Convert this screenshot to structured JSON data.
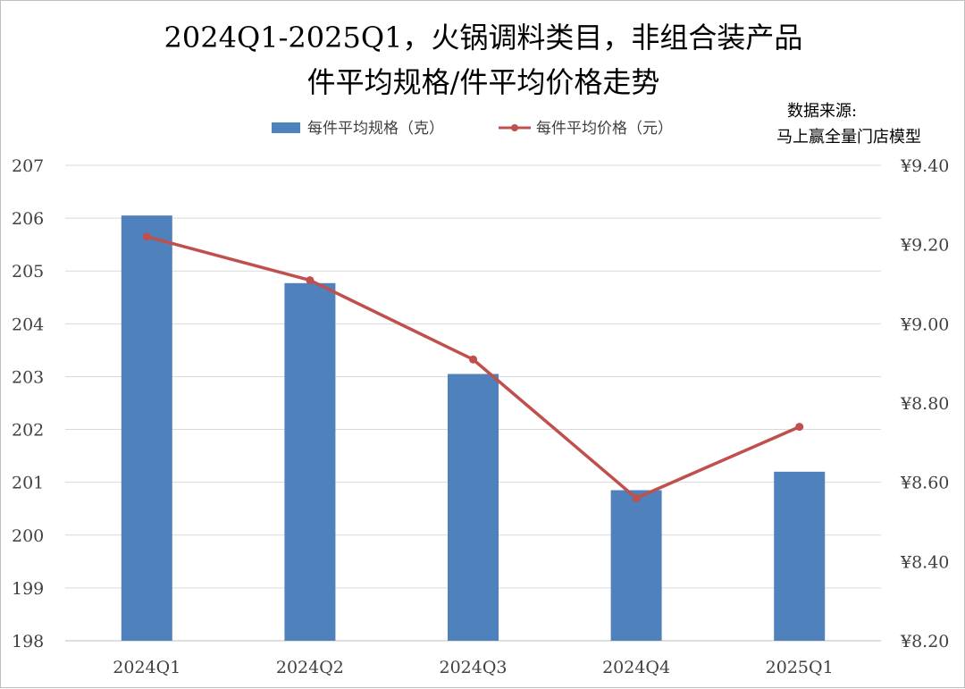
{
  "chart_data": {
    "type": "bar+line",
    "title_line1": "2024Q1-2025Q1，火锅调料类目，非组合装产品",
    "title_line2": "件平均规格/件平均价格走势",
    "source_label": "数据来源:",
    "source_name": "马上赢全量门店模型",
    "categories": [
      "2024Q1",
      "2024Q2",
      "2024Q3",
      "2024Q4",
      "2025Q1"
    ],
    "series": [
      {
        "name": "每件平均规格（克）",
        "type": "bar",
        "axis": "left",
        "color": "#4f81bd",
        "values": [
          206.05,
          204.77,
          203.05,
          200.85,
          201.2
        ]
      },
      {
        "name": "每件平均价格（元）",
        "type": "line",
        "axis": "right",
        "color": "#c0504d",
        "values": [
          9.22,
          9.11,
          8.91,
          8.56,
          8.74
        ]
      }
    ],
    "y_left": {
      "min": 198,
      "max": 207,
      "ticks": [
        "198",
        "199",
        "200",
        "201",
        "202",
        "203",
        "204",
        "205",
        "206",
        "207"
      ]
    },
    "y_right": {
      "min": 8.2,
      "max": 9.4,
      "ticks": [
        "¥8.20",
        "¥8.40",
        "¥8.60",
        "¥8.80",
        "¥9.00",
        "¥9.20",
        "¥9.40"
      ]
    },
    "grid": true,
    "legend_position": "top-center"
  }
}
